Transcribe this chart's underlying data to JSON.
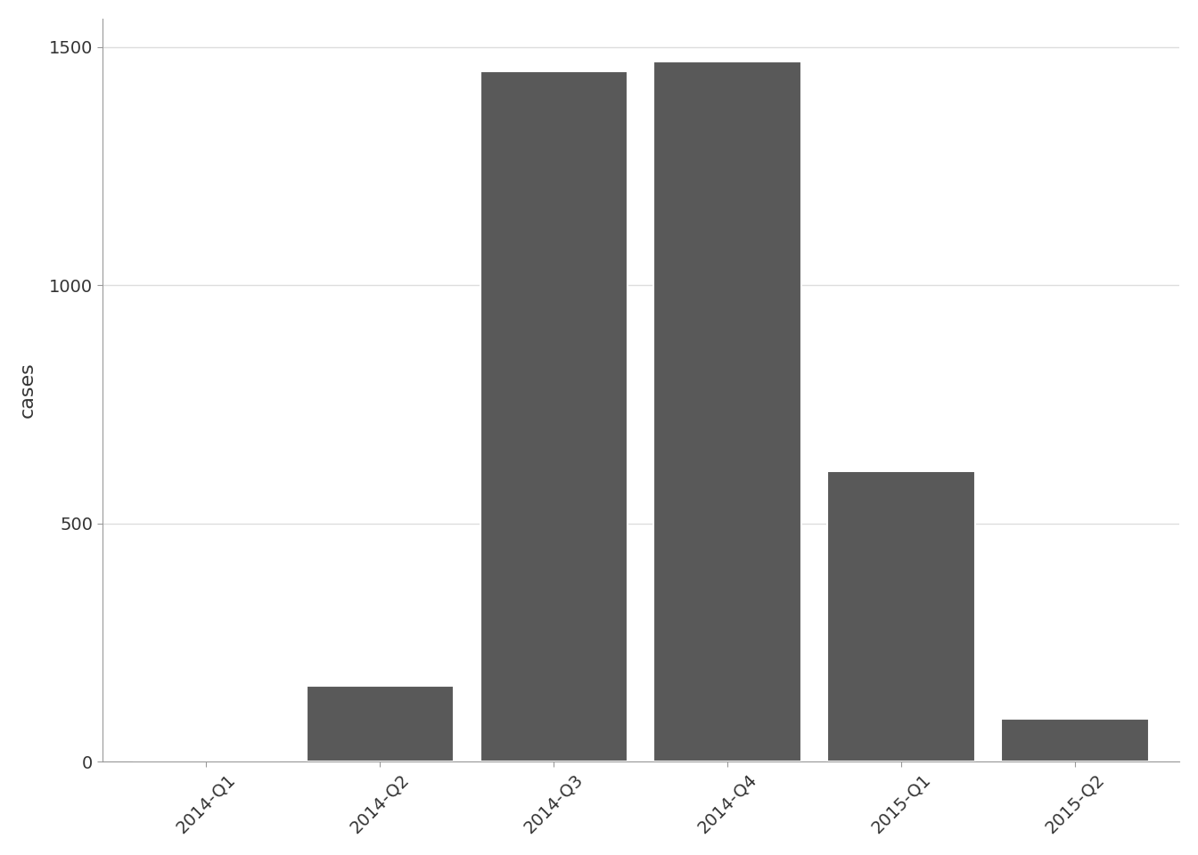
{
  "categories": [
    "2014-Q1",
    "2014-Q2",
    "2014-Q3",
    "2014-Q4",
    "2015-Q1",
    "2015-Q2"
  ],
  "values": [
    0,
    160,
    1450,
    1470,
    610,
    90
  ],
  "bar_color": "#595959",
  "bar_edge_color": "#ffffff",
  "bar_edge_width": 1.5,
  "ylabel": "cases",
  "ylim": [
    0,
    1560
  ],
  "yticks": [
    0,
    500,
    1000,
    1500
  ],
  "background_color": "#ffffff",
  "plot_bg_color": "#ffffff",
  "grid_color": "#dddddd",
  "ylabel_fontsize": 16,
  "tick_fontsize": 14,
  "figsize": [
    13.44,
    9.6
  ]
}
